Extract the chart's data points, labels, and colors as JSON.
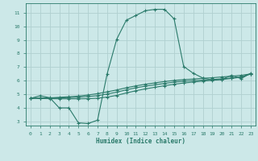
{
  "xlabel": "Humidex (Indice chaleur)",
  "bg_color": "#cce8e8",
  "grid_color": "#b0d0d0",
  "line_color": "#2a7a6a",
  "xlim": [
    -0.5,
    23.5
  ],
  "ylim": [
    2.7,
    11.7
  ],
  "xticks": [
    0,
    1,
    2,
    3,
    4,
    5,
    6,
    7,
    8,
    9,
    10,
    11,
    12,
    13,
    14,
    15,
    16,
    17,
    18,
    19,
    20,
    21,
    22,
    23
  ],
  "yticks": [
    3,
    4,
    5,
    6,
    7,
    8,
    9,
    10,
    11
  ],
  "curve1_x": [
    0,
    1,
    2,
    3,
    4,
    5,
    6,
    7,
    8,
    9,
    10,
    11,
    12,
    13,
    14,
    15,
    16,
    17,
    18,
    19,
    20,
    21,
    22,
    23
  ],
  "curve1_y": [
    4.7,
    4.9,
    4.75,
    4.0,
    4.0,
    2.9,
    2.85,
    3.1,
    6.5,
    9.05,
    10.45,
    10.8,
    11.15,
    11.25,
    11.25,
    10.55,
    7.05,
    6.55,
    6.2,
    6.05,
    6.1,
    6.4,
    6.15,
    6.55
  ],
  "curve2_x": [
    0,
    1,
    2,
    3,
    4,
    5,
    6,
    7,
    8,
    9,
    10,
    11,
    12,
    13,
    14,
    15,
    16,
    17,
    18,
    19,
    20,
    21,
    22,
    23
  ],
  "curve2_y": [
    4.7,
    4.72,
    4.74,
    4.78,
    4.82,
    4.87,
    4.95,
    5.05,
    5.18,
    5.32,
    5.48,
    5.62,
    5.74,
    5.84,
    5.94,
    6.02,
    6.08,
    6.12,
    6.18,
    6.22,
    6.28,
    6.33,
    6.4,
    6.5
  ],
  "curve3_x": [
    0,
    1,
    2,
    3,
    4,
    5,
    6,
    7,
    8,
    9,
    10,
    11,
    12,
    13,
    14,
    15,
    16,
    17,
    18,
    19,
    20,
    21,
    22,
    23
  ],
  "curve3_y": [
    4.7,
    4.71,
    4.72,
    4.74,
    4.76,
    4.79,
    4.84,
    4.9,
    5.02,
    5.16,
    5.33,
    5.48,
    5.6,
    5.7,
    5.8,
    5.9,
    5.96,
    6.0,
    6.05,
    6.09,
    6.14,
    6.2,
    6.28,
    6.5
  ],
  "curve4_x": [
    0,
    1,
    2,
    3,
    4,
    5,
    6,
    7,
    8,
    9,
    10,
    11,
    12,
    13,
    14,
    15,
    16,
    17,
    18,
    19,
    20,
    21,
    22,
    23
  ],
  "curve4_y": [
    4.7,
    4.69,
    4.68,
    4.67,
    4.67,
    4.67,
    4.68,
    4.71,
    4.8,
    4.92,
    5.1,
    5.26,
    5.4,
    5.52,
    5.63,
    5.74,
    5.83,
    5.9,
    5.97,
    6.03,
    6.09,
    6.17,
    6.26,
    6.5
  ]
}
